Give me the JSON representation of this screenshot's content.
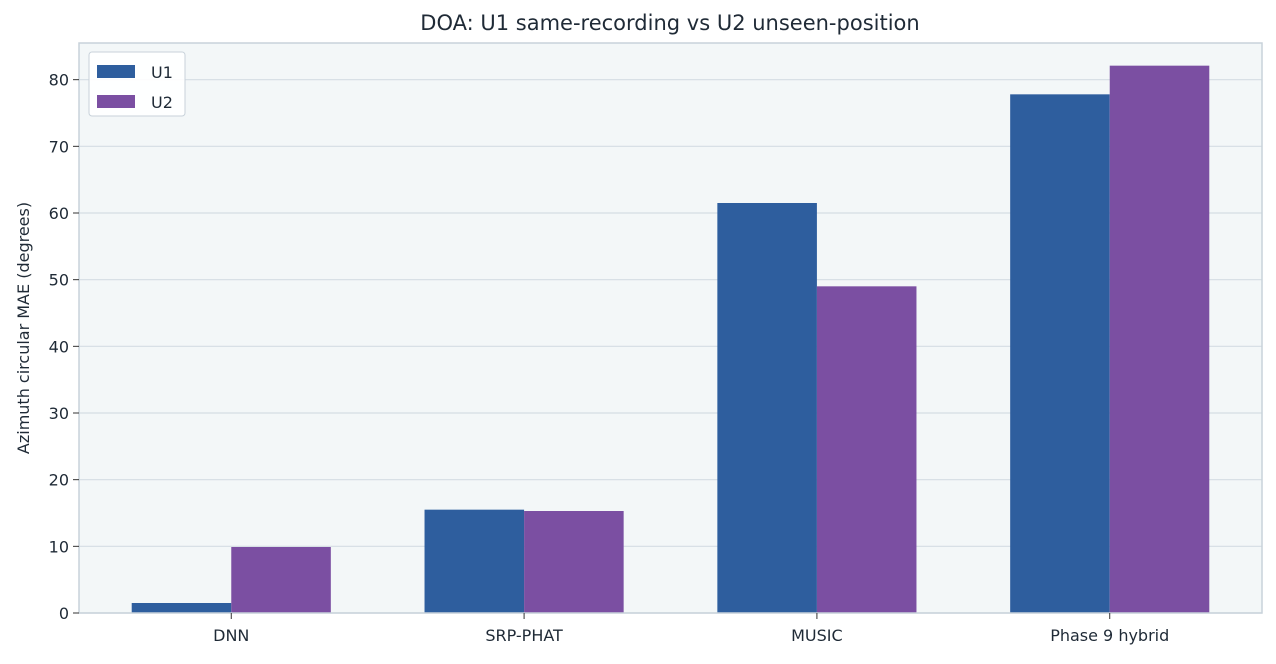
{
  "chart_data": {
    "type": "bar",
    "title": "DOA: U1 same-recording vs U2 unseen-position",
    "xlabel": "",
    "ylabel": "Azimuth circular MAE (degrees)",
    "categories": [
      "DNN",
      "SRP-PHAT",
      "MUSIC",
      "Phase 9 hybrid"
    ],
    "series": [
      {
        "name": "U1",
        "color": "#2e5e9e",
        "values": [
          1.5,
          15.5,
          61.5,
          77.8
        ]
      },
      {
        "name": "U2",
        "color": "#7b4fa2",
        "values": [
          9.9,
          15.3,
          49.0,
          82.1
        ]
      }
    ],
    "ylim": [
      0,
      85.5
    ],
    "yticks": [
      0,
      10,
      20,
      30,
      40,
      50,
      60,
      70,
      80
    ],
    "grid": true,
    "legend_position": "top-left",
    "plot_background": "#f3f7f8",
    "grid_color": "#d5dde3",
    "frame_color": "#c8d2da"
  }
}
